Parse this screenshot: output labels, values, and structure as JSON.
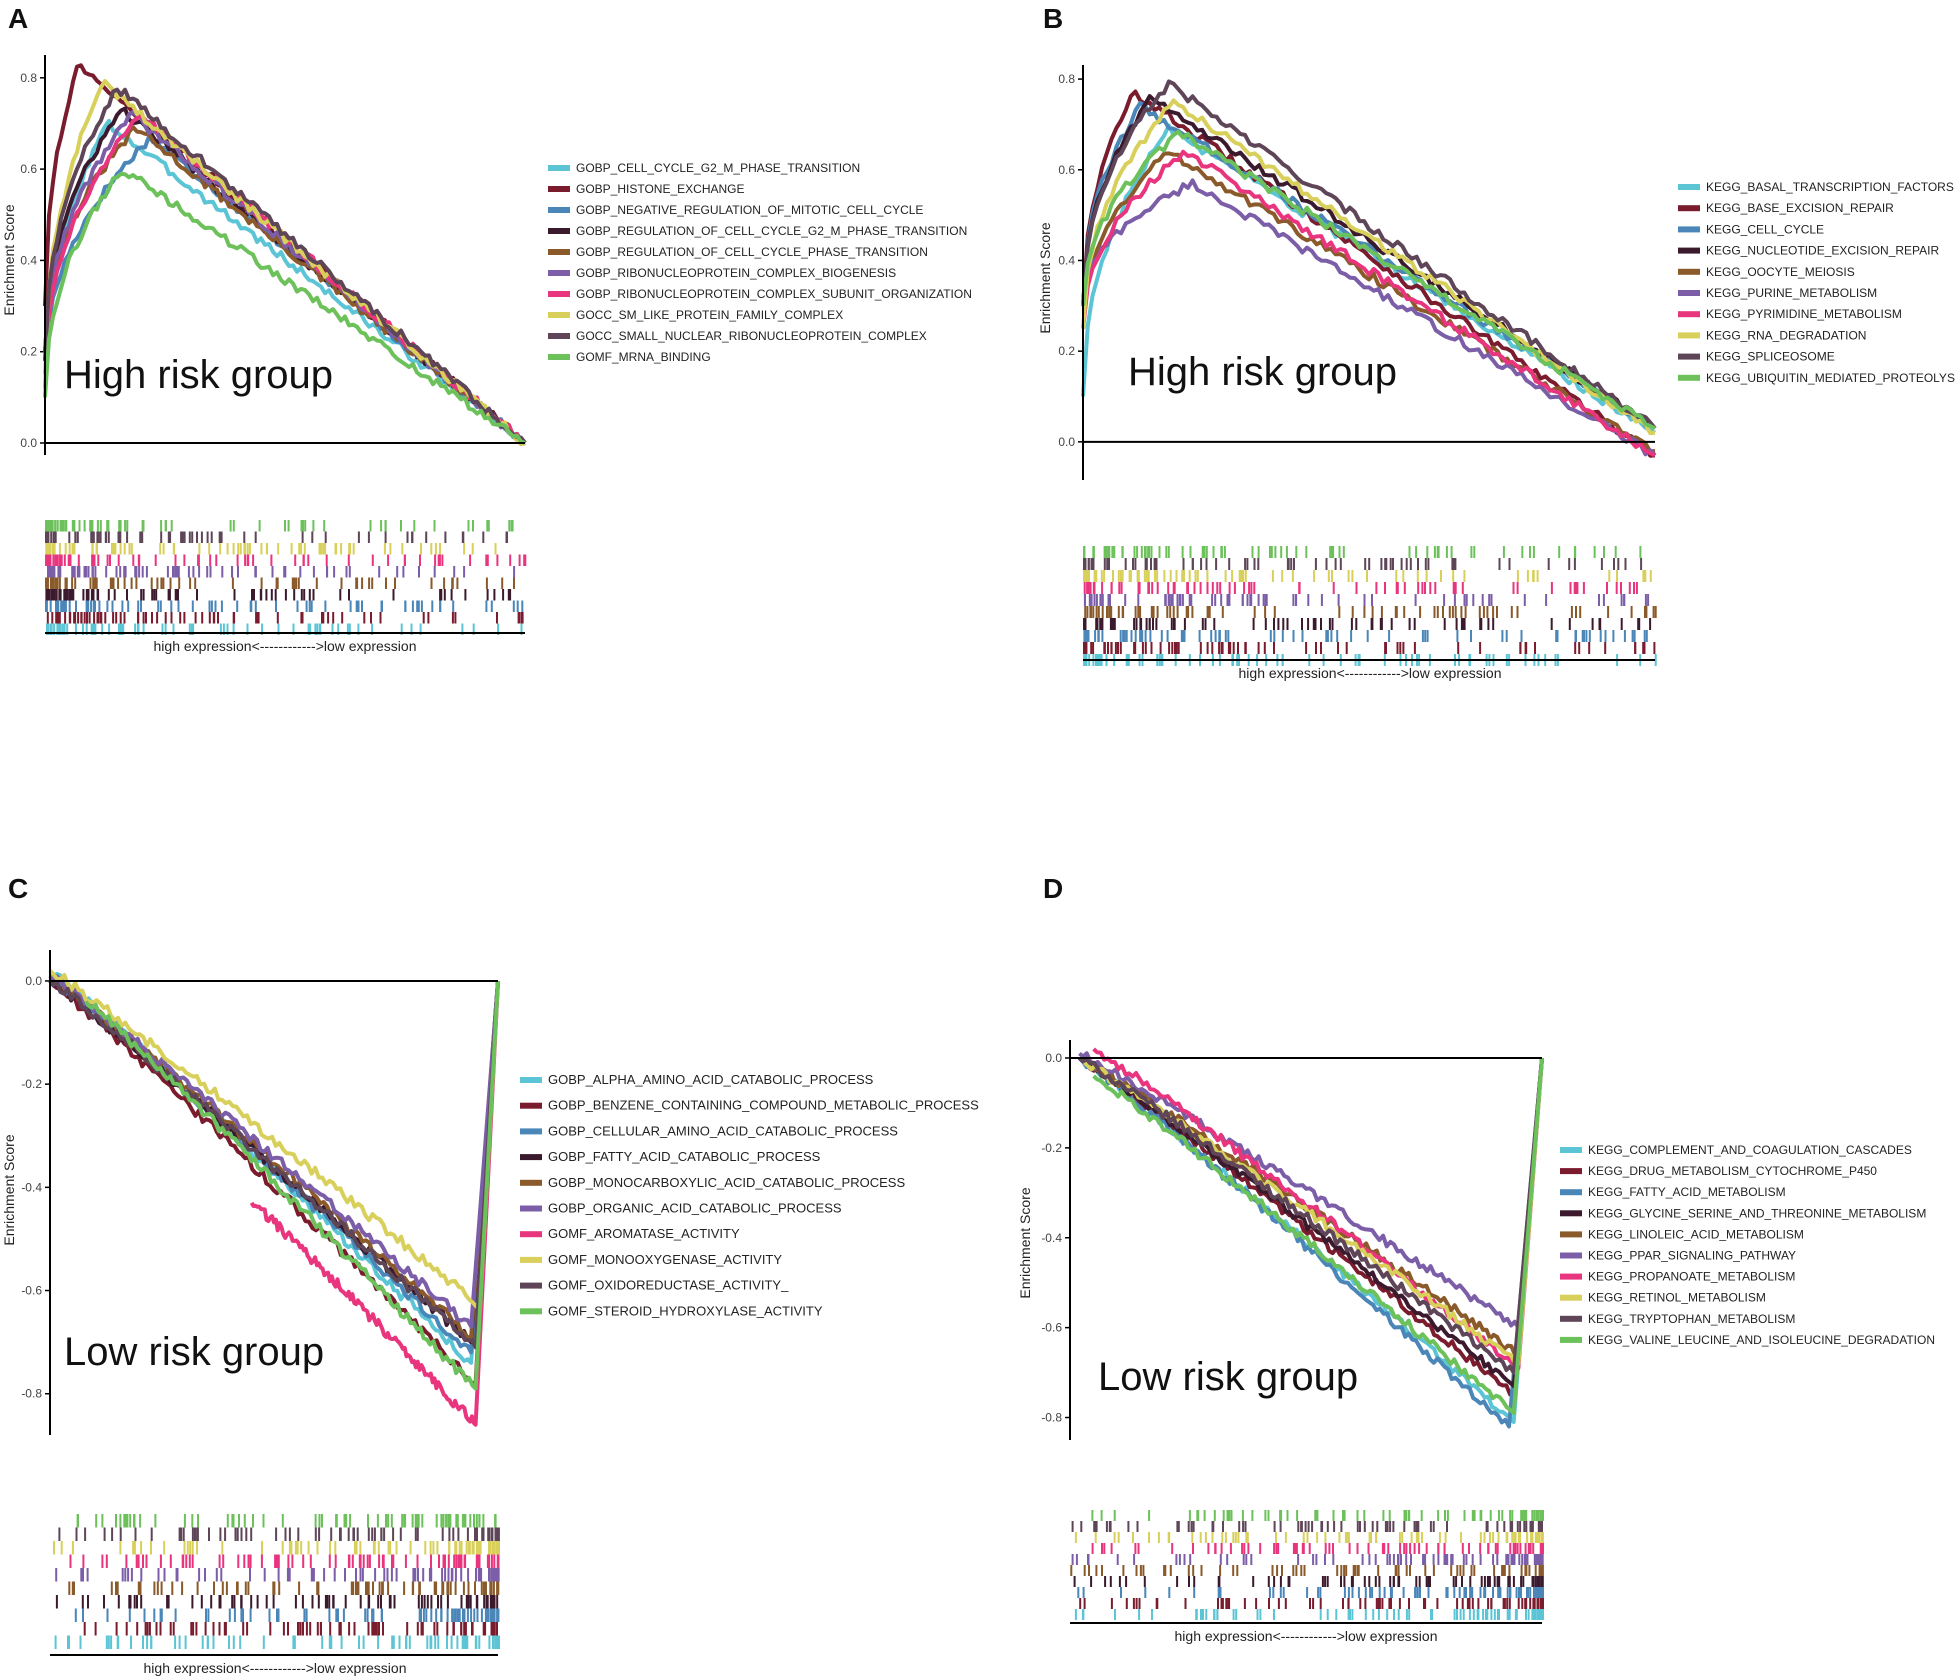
{
  "figure": {
    "expression_axis_label": "high expression<------------>low expression",
    "y_axis_label": "Enrichment Score"
  },
  "chart_data": [
    {
      "panel": "A",
      "type": "line",
      "group_label": "High risk group",
      "ylabel": "Enrichment Score",
      "ylim": [
        0,
        0.85
      ],
      "yticks": [
        0.0,
        0.2,
        0.4,
        0.6,
        0.8
      ],
      "ytick_labels": [
        "0.0",
        "0.2",
        "0.4",
        "0.6",
        "0.8"
      ],
      "x_range": [
        0,
        1
      ],
      "series": [
        {
          "name": "GOBP_CELL_CYCLE_G2_M_PHASE_TRANSITION",
          "color": "#5bc5d6",
          "peak_x": 0.13,
          "peak_y": 0.7,
          "start_y": 0.12,
          "end_y": 0.0
        },
        {
          "name": "GOBP_HISTONE_EXCHANGE",
          "color": "#7a1c2e",
          "peak_x": 0.07,
          "peak_y": 0.83,
          "start_y": 0.3,
          "end_y": 0.0
        },
        {
          "name": "GOBP_NEGATIVE_REGULATION_OF_MITOTIC_CELL_CYCLE",
          "color": "#4a86b8",
          "peak_x": 0.22,
          "peak_y": 0.67,
          "start_y": 0.15,
          "end_y": 0.0
        },
        {
          "name": "GOBP_REGULATION_OF_CELL_CYCLE_G2_M_PHASE_TRANSITION",
          "color": "#3b1a2e",
          "peak_x": 0.16,
          "peak_y": 0.73,
          "start_y": 0.2,
          "end_y": 0.0
        },
        {
          "name": "GOBP_REGULATION_OF_CELL_CYCLE_PHASE_TRANSITION",
          "color": "#8b5a2b",
          "peak_x": 0.19,
          "peak_y": 0.69,
          "start_y": 0.2,
          "end_y": 0.0
        },
        {
          "name": "GOBP_RIBONUCLEOPROTEIN_COMPLEX_BIOGENESIS",
          "color": "#7b5ea7",
          "peak_x": 0.18,
          "peak_y": 0.72,
          "start_y": 0.18,
          "end_y": 0.0
        },
        {
          "name": "GOBP_RIBONUCLEOPROTEIN_COMPLEX_SUBUNIT_ORGANIZATION",
          "color": "#e8357e",
          "peak_x": 0.2,
          "peak_y": 0.72,
          "start_y": 0.15,
          "end_y": 0.0
        },
        {
          "name": "GOCC_SM_LIKE_PROTEIN_FAMILY_COMPLEX",
          "color": "#d8d05a",
          "peak_x": 0.12,
          "peak_y": 0.79,
          "start_y": 0.15,
          "end_y": 0.0
        },
        {
          "name": "GOCC_SMALL_NUCLEAR_RIBONUCLEOPROTEIN_COMPLEX",
          "color": "#5e4557",
          "peak_x": 0.15,
          "peak_y": 0.78,
          "start_y": 0.18,
          "end_y": 0.0
        },
        {
          "name": "GOMF_MRNA_BINDING",
          "color": "#6cc15a",
          "peak_x": 0.16,
          "peak_y": 0.6,
          "start_y": 0.1,
          "end_y": 0.0
        }
      ]
    },
    {
      "panel": "B",
      "type": "line",
      "group_label": "High risk group",
      "ylabel": "Enrichment Score",
      "ylim": [
        -0.04,
        0.82
      ],
      "yticks": [
        0.0,
        0.2,
        0.4,
        0.6,
        0.8
      ],
      "ytick_labels": [
        "0.0",
        "0.2",
        "0.4",
        "0.6",
        "0.8"
      ],
      "x_range": [
        0,
        1
      ],
      "series": [
        {
          "name": "KEGG_BASAL_TRANSCRIPTION_FACTORS",
          "color": "#5bc5d6",
          "peak_x": 0.15,
          "peak_y": 0.69,
          "start_y": 0.1,
          "end_y": 0.02
        },
        {
          "name": "KEGG_BASE_EXCISION_REPAIR",
          "color": "#7a1c2e",
          "peak_x": 0.09,
          "peak_y": 0.77,
          "start_y": 0.3,
          "end_y": -0.03
        },
        {
          "name": "KEGG_CELL_CYCLE",
          "color": "#4a86b8",
          "peak_x": 0.1,
          "peak_y": 0.74,
          "start_y": 0.3,
          "end_y": 0.03
        },
        {
          "name": "KEGG_NUCLEOTIDE_EXCISION_REPAIR",
          "color": "#3b1a2e",
          "peak_x": 0.12,
          "peak_y": 0.76,
          "start_y": 0.3,
          "end_y": 0.03
        },
        {
          "name": "KEGG_OOCYTE_MEIOSIS",
          "color": "#8b5a2b",
          "peak_x": 0.15,
          "peak_y": 0.64,
          "start_y": 0.25,
          "end_y": -0.02
        },
        {
          "name": "KEGG_PURINE_METABOLISM",
          "color": "#7b5ea7",
          "peak_x": 0.19,
          "peak_y": 0.57,
          "start_y": 0.3,
          "end_y": -0.03
        },
        {
          "name": "KEGG_PYRIMIDINE_METABOLISM",
          "color": "#e8357e",
          "peak_x": 0.18,
          "peak_y": 0.64,
          "start_y": 0.25,
          "end_y": -0.03
        },
        {
          "name": "KEGG_RNA_DEGRADATION",
          "color": "#d8d05a",
          "peak_x": 0.16,
          "peak_y": 0.75,
          "start_y": 0.25,
          "end_y": 0.02
        },
        {
          "name": "KEGG_SPLICEOSOME",
          "color": "#5e4557",
          "peak_x": 0.15,
          "peak_y": 0.79,
          "start_y": 0.3,
          "end_y": 0.03
        },
        {
          "name": "KEGG_UBIQUITIN_MEDIATED_PROTEOLYSIS",
          "color": "#6cc15a",
          "peak_x": 0.17,
          "peak_y": 0.68,
          "start_y": 0.3,
          "end_y": 0.03
        }
      ]
    },
    {
      "panel": "C",
      "type": "line",
      "group_label": "Low risk group",
      "ylabel": "Enrichment Score",
      "ylim": [
        -0.88,
        0.06
      ],
      "yticks": [
        0.0,
        -0.2,
        -0.4,
        -0.6,
        -0.8
      ],
      "ytick_labels": [
        "0.0",
        "-0.2",
        "-0.4",
        "-0.6",
        "-0.8"
      ],
      "x_range": [
        0,
        1
      ],
      "series": [
        {
          "name": "GOBP_ALPHA_AMINO_ACID_CATABOLIC_PROCESS",
          "color": "#5bc5d6",
          "start_x": 0.0,
          "start_y": 0.02,
          "min_x": 0.94,
          "min_y": -0.74,
          "end_y": 0.0
        },
        {
          "name": "GOBP_BENZENE_CONTAINING_COMPOUND_METABOLIC_PROCESS",
          "color": "#7a1c2e",
          "start_x": 0.0,
          "start_y": 0.0,
          "min_x": 0.95,
          "min_y": -0.78,
          "end_y": 0.0
        },
        {
          "name": "GOBP_CELLULAR_AMINO_ACID_CATABOLIC_PROCESS",
          "color": "#4a86b8",
          "start_x": 0.0,
          "start_y": 0.01,
          "min_x": 0.94,
          "min_y": -0.72,
          "end_y": 0.0
        },
        {
          "name": "GOBP_FATTY_ACID_CATABOLIC_PROCESS",
          "color": "#3b1a2e",
          "start_x": 0.0,
          "start_y": 0.0,
          "min_x": 0.94,
          "min_y": -0.7,
          "end_y": 0.0
        },
        {
          "name": "GOBP_MONOCARBOXYLIC_ACID_CATABOLIC_PROCESS",
          "color": "#8b5a2b",
          "start_x": 0.0,
          "start_y": 0.01,
          "min_x": 0.94,
          "min_y": -0.69,
          "end_y": 0.0
        },
        {
          "name": "GOBP_ORGANIC_ACID_CATABOLIC_PROCESS",
          "color": "#7b5ea7",
          "start_x": 0.0,
          "start_y": 0.01,
          "min_x": 0.94,
          "min_y": -0.67,
          "end_y": 0.0
        },
        {
          "name": "GOMF_AROMATASE_ACTIVITY",
          "color": "#e8357e",
          "start_x": 0.45,
          "start_y": -0.43,
          "min_x": 0.95,
          "min_y": -0.86,
          "end_y": 0.0
        },
        {
          "name": "GOMF_MONOOXYGENASE_ACTIVITY",
          "color": "#d8d05a",
          "start_x": 0.0,
          "start_y": 0.02,
          "min_x": 0.96,
          "min_y": -0.63,
          "end_y": 0.0
        },
        {
          "name": "GOMF_OXIDOREDUCTASE_ACTIVITY_",
          "color": "#5e4557",
          "start_x": 0.0,
          "start_y": 0.0,
          "min_x": 0.95,
          "min_y": -0.71,
          "end_y": 0.0
        },
        {
          "name": "GOMF_STEROID_HYDROXYLASE_ACTIVITY",
          "color": "#6cc15a",
          "start_x": 0.08,
          "start_y": -0.04,
          "min_x": 0.95,
          "min_y": -0.79,
          "end_y": 0.0
        }
      ]
    },
    {
      "panel": "D",
      "type": "line",
      "group_label": "Low risk group",
      "ylabel": "Enrichment Score",
      "ylim": [
        -0.85,
        0.04
      ],
      "yticks": [
        0.0,
        -0.2,
        -0.4,
        -0.6,
        -0.8
      ],
      "ytick_labels": [
        "0.0",
        "-0.2",
        "-0.4",
        "-0.6",
        "-0.8"
      ],
      "x_range": [
        0,
        1
      ],
      "series": [
        {
          "name": "KEGG_COMPLEMENT_AND_COAGULATION_CASCADES",
          "color": "#5bc5d6",
          "start_x": 0.02,
          "start_y": 0.0,
          "min_x": 0.94,
          "min_y": -0.81,
          "end_y": 0.0
        },
        {
          "name": "KEGG_DRUG_METABOLISM_CYTOCHROME_P450",
          "color": "#7a1c2e",
          "start_x": 0.02,
          "start_y": 0.0,
          "min_x": 0.94,
          "min_y": -0.75,
          "end_y": 0.0
        },
        {
          "name": "KEGG_FATTY_ACID_METABOLISM",
          "color": "#4a86b8",
          "start_x": 0.02,
          "start_y": 0.0,
          "min_x": 0.93,
          "min_y": -0.82,
          "end_y": 0.0
        },
        {
          "name": "KEGG_GLYCINE_SERINE_AND_THREONINE_METABOLISM",
          "color": "#3b1a2e",
          "start_x": 0.02,
          "start_y": 0.0,
          "min_x": 0.94,
          "min_y": -0.73,
          "end_y": 0.0
        },
        {
          "name": "KEGG_LINOLEIC_ACID_METABOLISM",
          "color": "#8b5a2b",
          "start_x": 0.05,
          "start_y": -0.02,
          "min_x": 0.95,
          "min_y": -0.66,
          "end_y": 0.0
        },
        {
          "name": "KEGG_PPAR_SIGNALING_PATHWAY",
          "color": "#7b5ea7",
          "start_x": 0.02,
          "start_y": 0.01,
          "min_x": 0.95,
          "min_y": -0.6,
          "end_y": 0.0
        },
        {
          "name": "KEGG_PROPANOATE_METABOLISM",
          "color": "#e8357e",
          "start_x": 0.05,
          "start_y": 0.02,
          "min_x": 0.95,
          "min_y": -0.69,
          "end_y": 0.0
        },
        {
          "name": "KEGG_RETINOL_METABOLISM",
          "color": "#d8d05a",
          "start_x": 0.03,
          "start_y": -0.01,
          "min_x": 0.95,
          "min_y": -0.68,
          "end_y": 0.0
        },
        {
          "name": "KEGG_TRYPTOPHAN_METABOLISM",
          "color": "#5e4557",
          "start_x": 0.02,
          "start_y": 0.0,
          "min_x": 0.94,
          "min_y": -0.7,
          "end_y": 0.0
        },
        {
          "name": "KEGG_VALINE_LEUCINE_AND_ISOLEUCINE_DEGRADATION",
          "color": "#6cc15a",
          "start_x": 0.05,
          "start_y": -0.04,
          "min_x": 0.94,
          "min_y": -0.79,
          "end_y": 0.0
        }
      ]
    }
  ]
}
